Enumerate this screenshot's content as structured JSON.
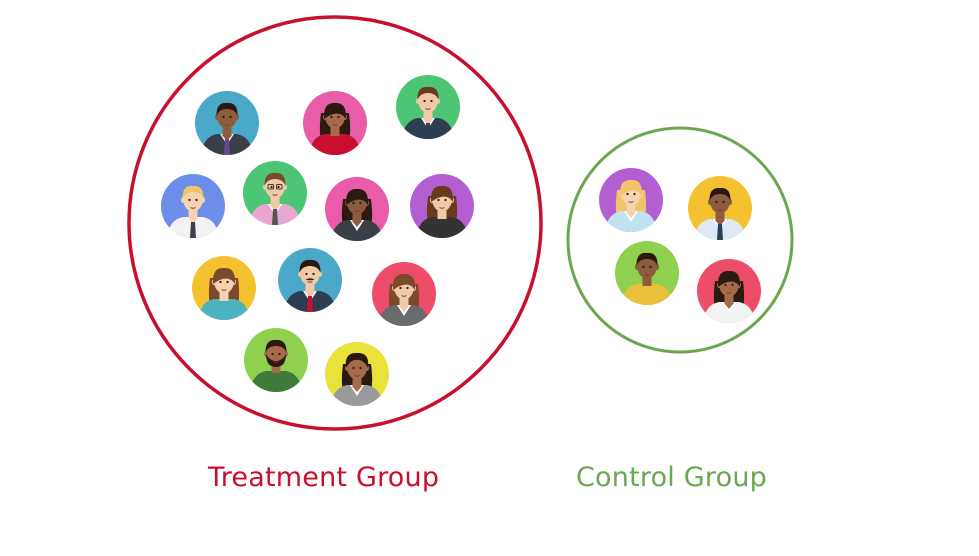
{
  "colors": {
    "treatment": "#c8102e",
    "control": "#6aa84f"
  },
  "groups": [
    {
      "id": "treatment",
      "label": "Treatment Group",
      "members": [
        {
          "bg": "#4aa8c9",
          "skin": "#8d5b3e",
          "hair": "#2b1a12",
          "hair_style": "short",
          "shirt": "#3a3f47",
          "collar": "#e8e8e8",
          "tie": "#6a4a8a"
        },
        {
          "bg": "#e85ca8",
          "skin": "#a86b4a",
          "hair": "#2b1a12",
          "hair_style": "long",
          "shirt": "#c8102e",
          "collar": null,
          "tie": null
        },
        {
          "bg": "#4cc574",
          "skin": "#f1c9a5",
          "hair": "#6a3a1e",
          "hair_style": "short",
          "shirt": "#2d3e50",
          "collar": "#ffffff",
          "tie": "#2d3e50"
        },
        {
          "bg": "#6c8ee8",
          "skin": "#f5d2b0",
          "hair": "#f2c36b",
          "hair_style": "short",
          "shirt": "#f2f2f2",
          "collar": "#ffffff",
          "tie": "#3a3f47"
        },
        {
          "bg": "#4cc574",
          "skin": "#f1c9a5",
          "hair": "#7a4a2a",
          "hair_style": "glasses",
          "shirt": "#e9a6cf",
          "collar": "#ffffff",
          "tie": "#555555"
        },
        {
          "bg": "#e85ca8",
          "skin": "#8d5b3e",
          "hair": "#2b1a12",
          "hair_style": "long",
          "shirt": "#3a3f47",
          "collar": "#ffffff",
          "tie": null
        },
        {
          "bg": "#b35ed1",
          "skin": "#f1c9a5",
          "hair": "#6a3a1e",
          "hair_style": "long",
          "shirt": "#333333",
          "collar": null,
          "tie": null
        },
        {
          "bg": "#f6c12e",
          "skin": "#f5d2b0",
          "hair": "#7a4a2a",
          "hair_style": "long",
          "shirt": "#4fb3bf",
          "collar": null,
          "tie": null
        },
        {
          "bg": "#4aa8c9",
          "skin": "#f1c9a5",
          "hair": "#2b1a12",
          "hair_style": "mustache",
          "shirt": "#2d3e50",
          "collar": "#ffffff",
          "tie": "#c8102e"
        },
        {
          "bg": "#ee4d6a",
          "skin": "#f1c9a5",
          "hair": "#7a4a2a",
          "hair_style": "long",
          "shirt": "#6b6b6b",
          "collar": "#ffffff",
          "tie": null
        },
        {
          "bg": "#8fd14f",
          "skin": "#a86b4a",
          "hair": "#2b1a12",
          "hair_style": "beard",
          "shirt": "#3f7a3a",
          "collar": null,
          "tie": null
        },
        {
          "bg": "#e8e23a",
          "skin": "#a86b4a",
          "hair": "#2b1a12",
          "hair_style": "curly",
          "shirt": "#9a9a9a",
          "collar": "#ffffff",
          "tie": null
        }
      ]
    },
    {
      "id": "control",
      "label": "Control Group",
      "members": [
        {
          "bg": "#b35ed1",
          "skin": "#f5d2b0",
          "hair": "#f2c36b",
          "hair_style": "long",
          "shirt": "#bfe3ef",
          "collar": "#ffffff",
          "tie": null
        },
        {
          "bg": "#f6c12e",
          "skin": "#8d5b3e",
          "hair": "#2b1a12",
          "hair_style": "short",
          "shirt": "#dfe8f5",
          "collar": "#ffffff",
          "tie": "#2d3e50"
        },
        {
          "bg": "#8fd14f",
          "skin": "#8d5b3e",
          "hair": "#2b1a12",
          "hair_style": "short",
          "shirt": "#e8c03a",
          "collar": null,
          "tie": null
        },
        {
          "bg": "#ee4d6a",
          "skin": "#a86b4a",
          "hair": "#2b1a12",
          "hair_style": "long",
          "shirt": "#f2f2f2",
          "collar": "#ffffff",
          "tie": null
        }
      ]
    }
  ]
}
